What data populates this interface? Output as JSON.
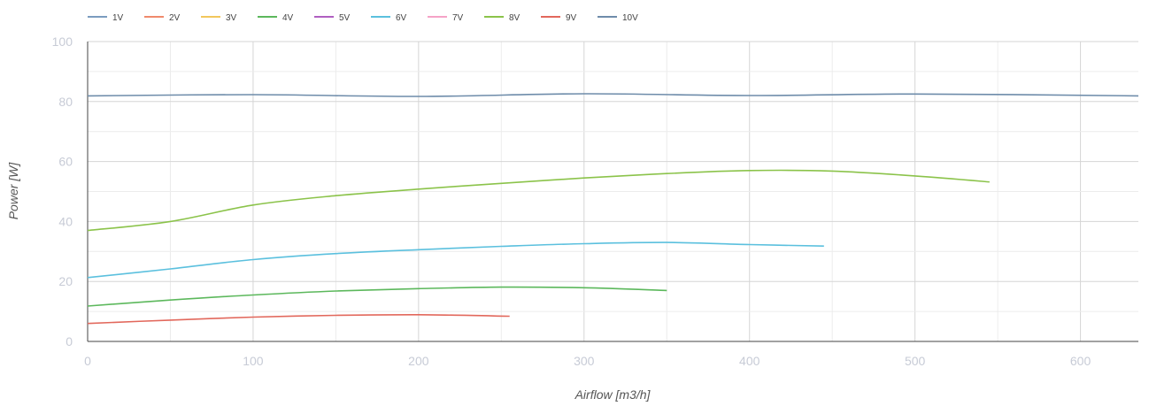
{
  "chart_data": {
    "type": "line",
    "title": "",
    "xlabel": "Airflow [m3/h]",
    "ylabel": "Power [W]",
    "xlim": [
      0,
      635
    ],
    "ylim": [
      0,
      100
    ],
    "x_ticks": [
      0,
      100,
      200,
      300,
      400,
      500,
      600
    ],
    "y_ticks": [
      0,
      20,
      40,
      60,
      80,
      100
    ],
    "grid": true,
    "legend_position": "top-left",
    "series": [
      {
        "name": "1V",
        "color": "#7b9cbf",
        "x": [],
        "y": []
      },
      {
        "name": "2V",
        "color": "#f08a6c",
        "x": [],
        "y": []
      },
      {
        "name": "3V",
        "color": "#f2c75c",
        "x": [],
        "y": []
      },
      {
        "name": "4V",
        "color": "#5cb85c",
        "x": [
          0,
          50,
          100,
          150,
          200,
          250,
          300,
          350
        ],
        "y": [
          11.8,
          13.8,
          15.5,
          16.8,
          17.6,
          18.1,
          17.9,
          17.0
        ]
      },
      {
        "name": "5V",
        "color": "#b05fc1",
        "x": [],
        "y": []
      },
      {
        "name": "6V",
        "color": "#5bc0de",
        "x": [
          0,
          50,
          100,
          150,
          200,
          250,
          300,
          350,
          400,
          445
        ],
        "y": [
          21.3,
          24.2,
          27.3,
          29.3,
          30.6,
          31.7,
          32.6,
          33.0,
          32.3,
          31.8
        ]
      },
      {
        "name": "7V",
        "color": "#f5a3c7",
        "x": [],
        "y": []
      },
      {
        "name": "8V",
        "color": "#8bc34a",
        "x": [
          0,
          50,
          100,
          150,
          200,
          250,
          300,
          350,
          400,
          450,
          500,
          545
        ],
        "y": [
          37.0,
          40.0,
          45.5,
          48.6,
          50.8,
          52.7,
          54.5,
          56.0,
          57.0,
          56.8,
          55.2,
          53.2
        ]
      },
      {
        "name": "9V",
        "color": "#e2685c",
        "x": [
          0,
          50,
          100,
          150,
          200,
          255
        ],
        "y": [
          6.0,
          7.1,
          8.1,
          8.7,
          8.9,
          8.4
        ]
      },
      {
        "name": "10V",
        "color": "#6e8caa",
        "x": [
          0,
          100,
          200,
          300,
          400,
          500,
          635
        ],
        "y": [
          81.9,
          82.3,
          81.7,
          82.6,
          82.0,
          82.5,
          81.9
        ]
      }
    ]
  }
}
